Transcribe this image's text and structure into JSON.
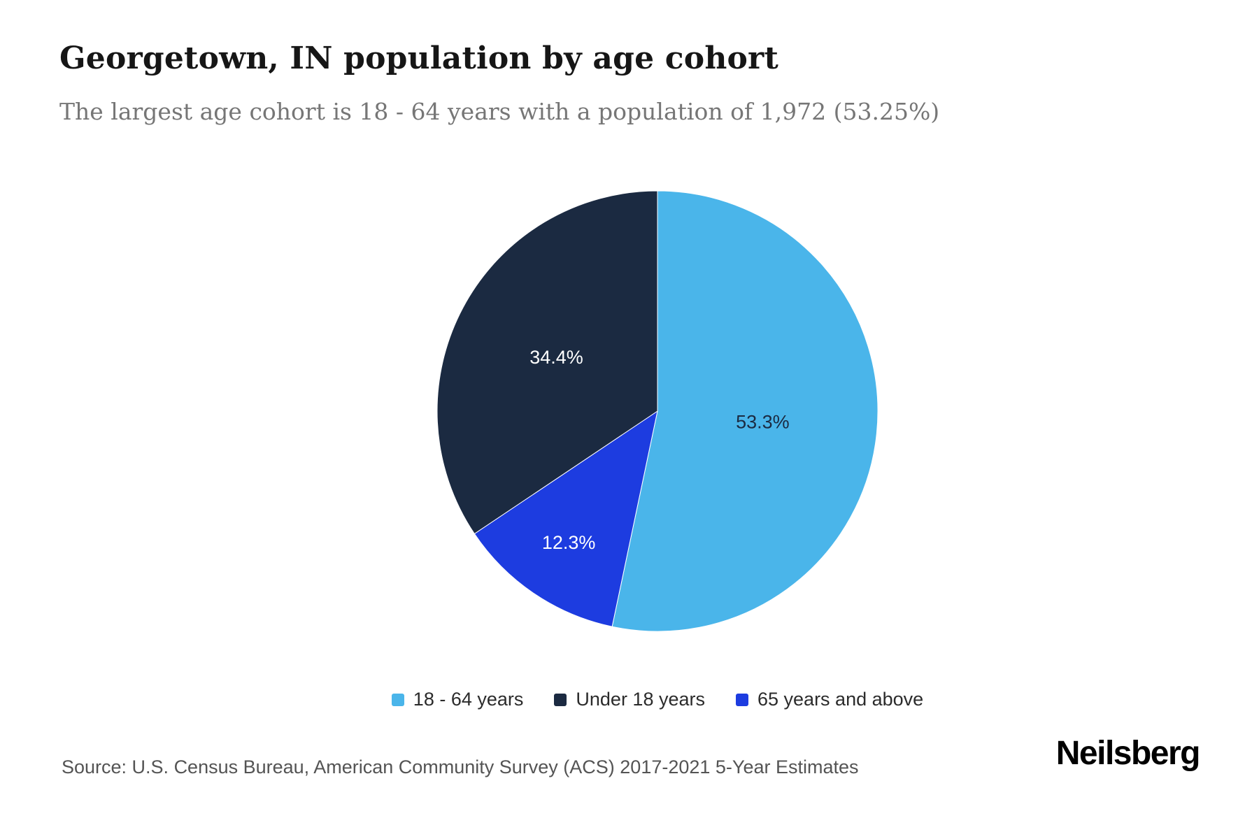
{
  "header": {
    "title": "Georgetown, IN population by age cohort",
    "subtitle": "The largest age cohort is 18 - 64 years with a population of 1,972 (53.25%)"
  },
  "footer": {
    "source": "Source: U.S. Census Bureau, American Community Survey (ACS) 2017-2021 5-Year Estimates",
    "brand": "Neilsberg"
  },
  "colors": {
    "light_blue": "#4ab5ea",
    "dark_navy": "#1b2a41",
    "royal_blue": "#1d3ce0",
    "title_text": "#161616",
    "subtitle_text": "#767676",
    "source_text": "#545454"
  },
  "chart_data": {
    "type": "pie",
    "title": "Georgetown, IN population by age cohort",
    "subtitle": "The largest age cohort is 18 - 64 years with a population of 1,972 (53.25%)",
    "start_angle_deg": 0,
    "direction": "clockwise",
    "slices": [
      {
        "id": "18-64-years",
        "label": "18 - 64 years",
        "value_pct": 53.3,
        "display": "53.3%",
        "population": 1972,
        "color": "#4ab5ea",
        "label_color": "#1b2a41",
        "label_radius": 0.48
      },
      {
        "id": "65-years-and-above",
        "label": "65 years and above",
        "value_pct": 12.3,
        "display": "12.3%",
        "color": "#1d3ce0",
        "label_color": "#ffffff",
        "label_radius": 0.72
      },
      {
        "id": "under-18-years",
        "label": "Under 18 years",
        "value_pct": 34.4,
        "display": "34.4%",
        "color": "#1b2a41",
        "label_color": "#ffffff",
        "label_radius": 0.52
      }
    ],
    "legend": [
      {
        "id": "18-64-years",
        "label": "18 - 64 years",
        "color": "#4ab5ea"
      },
      {
        "id": "under-18-years",
        "label": "Under 18 years",
        "color": "#1b2a41"
      },
      {
        "id": "65-years-and-above",
        "label": "65 years and above",
        "color": "#1d3ce0"
      }
    ],
    "legend_position": "bottom-center"
  }
}
